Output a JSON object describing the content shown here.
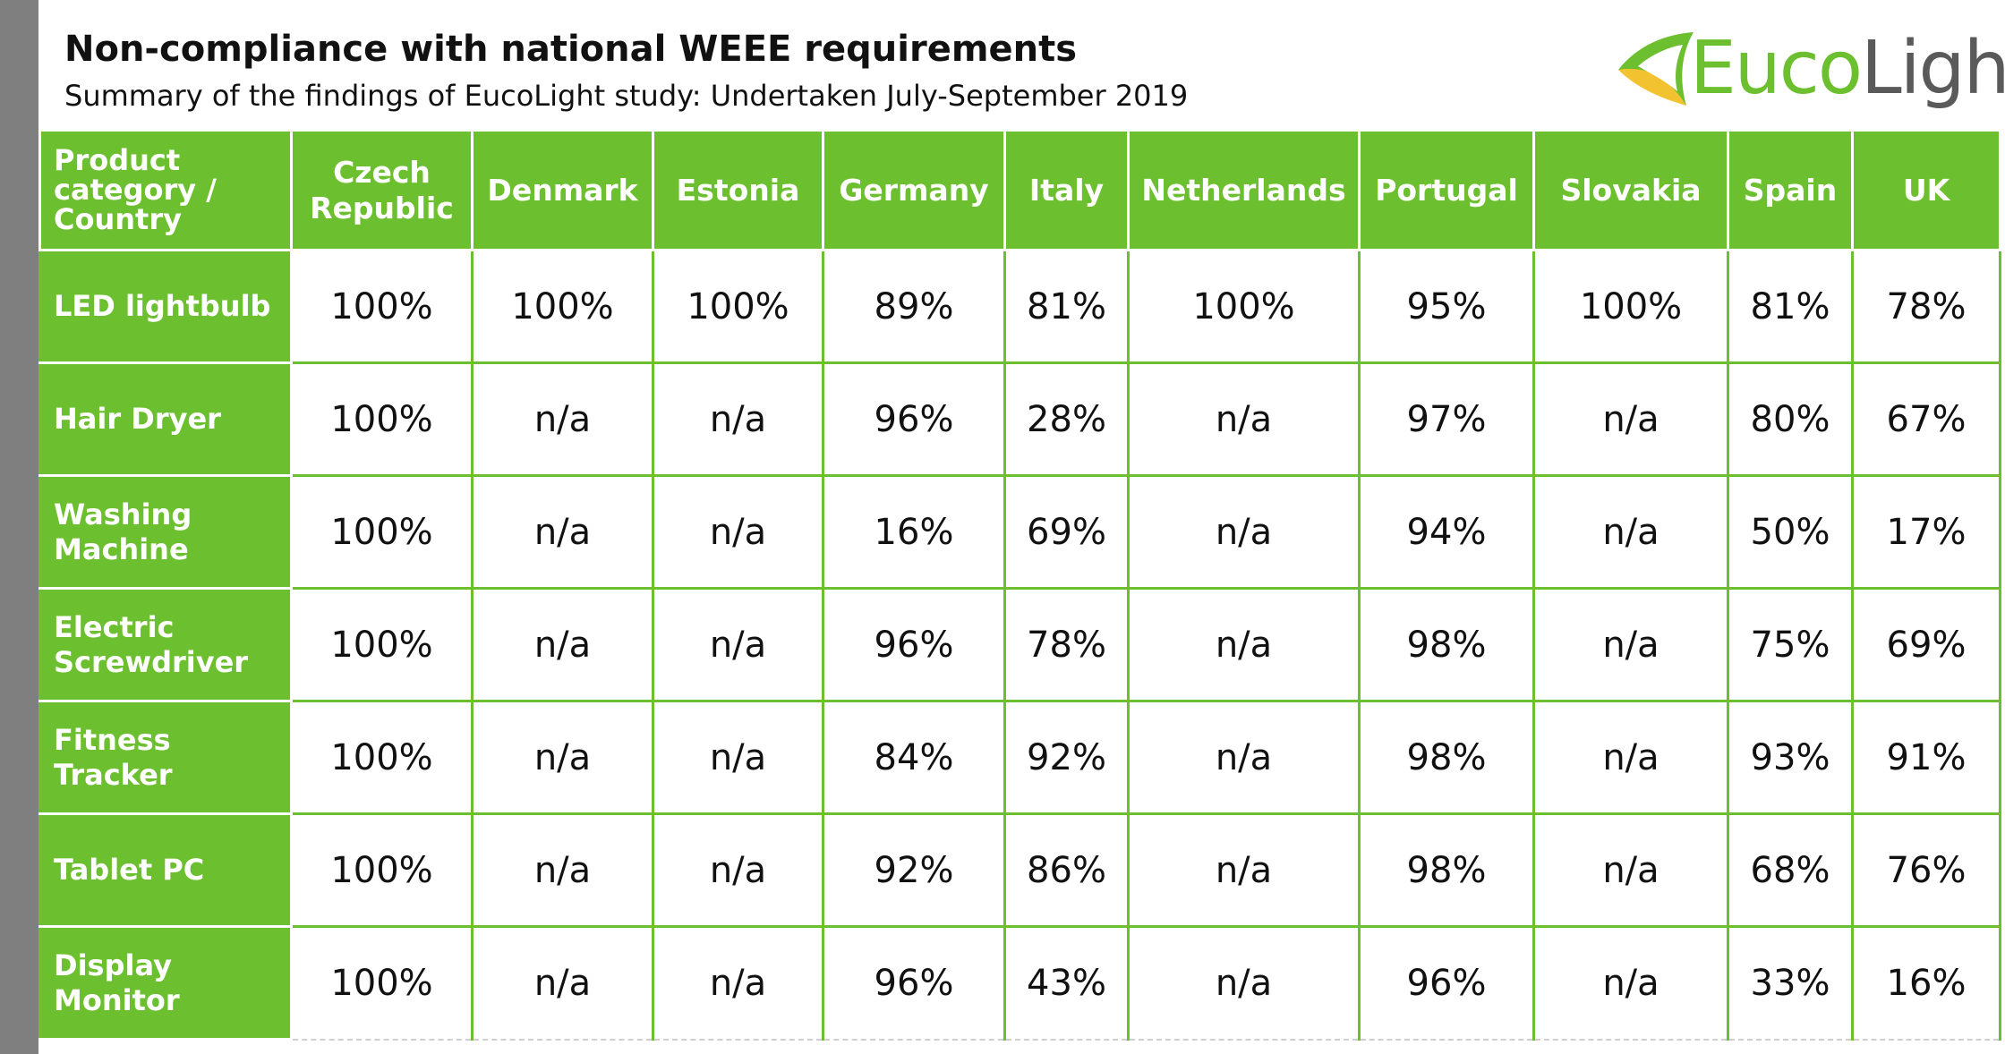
{
  "header": {
    "title": "Non-compliance with national WEEE requirements",
    "subtitle": "Summary of the findings of EucoLight study: Undertaken July-September 2019"
  },
  "logo": {
    "text_part1": "Euco",
    "text_part2": "Light",
    "icon": "eucolight-leaf-logo-icon"
  },
  "colors": {
    "accent_green": "#6cbf2e",
    "side_bar_gray": "#7f7f7f",
    "logo_gray": "#5a5a5a"
  },
  "table": {
    "corner_label": "Product category / Country",
    "columns": [
      "Czech Republic",
      "Denmark",
      "Estonia",
      "Germany",
      "Italy",
      "Netherlands",
      "Portugal",
      "Slovakia",
      "Spain",
      "UK"
    ],
    "rows": [
      {
        "label": "LED lightbulb",
        "values": [
          "100%",
          "100%",
          "100%",
          "89%",
          "81%",
          "100%",
          "95%",
          "100%",
          "81%",
          "78%"
        ]
      },
      {
        "label": "Hair Dryer",
        "values": [
          "100%",
          "n/a",
          "n/a",
          "96%",
          "28%",
          "n/a",
          "97%",
          "n/a",
          "80%",
          "67%"
        ]
      },
      {
        "label": "Washing Machine",
        "values": [
          "100%",
          "n/a",
          "n/a",
          "16%",
          "69%",
          "n/a",
          "94%",
          "n/a",
          "50%",
          "17%"
        ]
      },
      {
        "label": "Electric Screwdriver",
        "values": [
          "100%",
          "n/a",
          "n/a",
          "96%",
          "78%",
          "n/a",
          "98%",
          "n/a",
          "75%",
          "69%"
        ]
      },
      {
        "label": "Fitness Tracker",
        "values": [
          "100%",
          "n/a",
          "n/a",
          "84%",
          "92%",
          "n/a",
          "98%",
          "n/a",
          "93%",
          "91%"
        ]
      },
      {
        "label": "Tablet PC",
        "values": [
          "100%",
          "n/a",
          "n/a",
          "92%",
          "86%",
          "n/a",
          "98%",
          "n/a",
          "68%",
          "76%"
        ]
      },
      {
        "label": "Display Monitor",
        "values": [
          "100%",
          "n/a",
          "n/a",
          "96%",
          "43%",
          "n/a",
          "96%",
          "n/a",
          "33%",
          "16%"
        ]
      }
    ]
  }
}
